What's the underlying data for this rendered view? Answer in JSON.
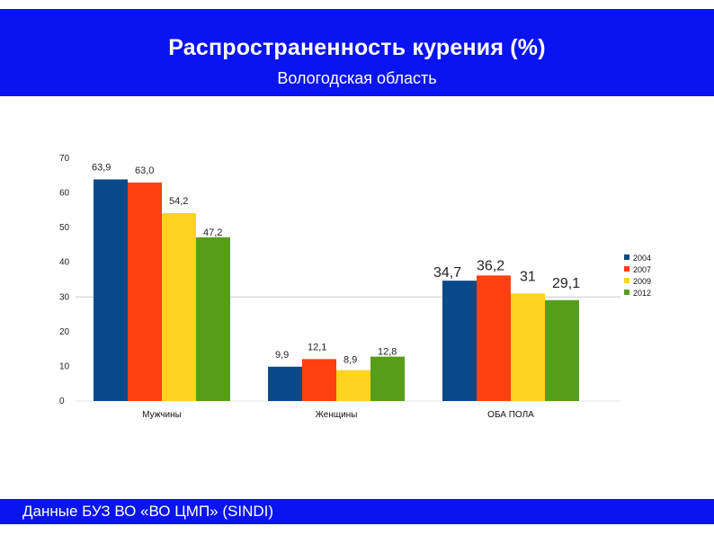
{
  "header": {
    "title": "Распространенность курения (%)",
    "subtitle": "Вологодская область"
  },
  "footer": {
    "text": "Данные БУЗ ВО «ВО ЦМП» (SINDI)"
  },
  "chart_data": {
    "type": "bar",
    "title": "Распространенность курения (%)",
    "subtitle": "Вологодская область",
    "categories": [
      "Мужчины",
      "Женщины",
      "ОБА ПОЛА"
    ],
    "series": [
      {
        "name": "2004",
        "color": "#0b4a8a",
        "values": [
          63.9,
          9.9,
          34.7
        ],
        "labels": [
          "63,9",
          "9,9",
          "34,7"
        ]
      },
      {
        "name": "2007",
        "color": "#ff4010",
        "values": [
          63.0,
          12.1,
          36.2
        ],
        "labels": [
          "63,0",
          "12,1",
          "36,2"
        ]
      },
      {
        "name": "2009",
        "color": "#ffd320",
        "values": [
          54.2,
          8.9,
          31
        ],
        "labels": [
          "54,2",
          "8,9",
          "31"
        ]
      },
      {
        "name": "2012",
        "color": "#579d1c",
        "values": [
          47.2,
          12.8,
          29.1
        ],
        "labels": [
          "47,2",
          "12,8",
          "29,1"
        ]
      }
    ],
    "yticks": [
      "0",
      "10",
      "20",
      "30",
      "40",
      "50",
      "60",
      "70"
    ],
    "ylim": [
      0,
      70
    ],
    "xlabel": "",
    "ylabel": "",
    "grid": "horizontal line at 30",
    "legend_position": "right"
  }
}
